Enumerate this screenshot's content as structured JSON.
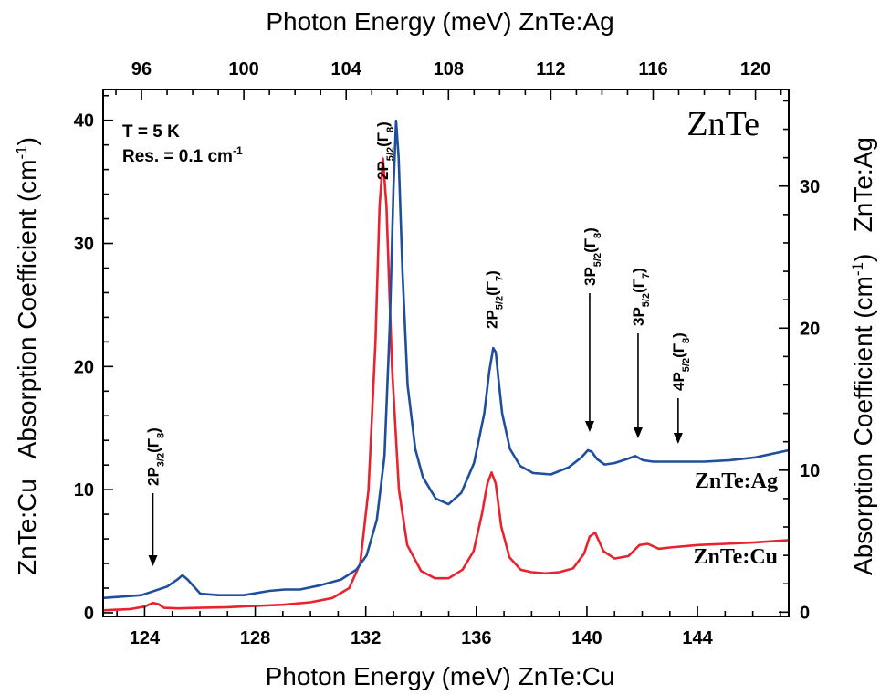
{
  "chart_data": {
    "type": "line",
    "title": "ZnTe",
    "conditions": [
      "T = 5 K",
      "Res. = 0.1 cm"
    ],
    "conditions_superscript": "-1",
    "x_bottom": {
      "label": "Photon Energy (meV)  ZnTe:Cu",
      "range": [
        122.5,
        147.3
      ],
      "ticks": [
        124,
        128,
        132,
        136,
        140,
        144
      ]
    },
    "x_top": {
      "label": "Photon Energy (meV)  ZnTe:Ag",
      "range": [
        94.5,
        121.3
      ],
      "ticks": [
        96,
        100,
        104,
        108,
        112,
        116,
        120
      ]
    },
    "y_left": {
      "label_prefix": "ZnTe:Cu",
      "label": "Absorption Coefficient (cm",
      "label_sup": "-1",
      "label_close": ")",
      "range": [
        -0.3,
        42.5
      ],
      "ticks": [
        0,
        10,
        20,
        30,
        40
      ]
    },
    "y_right": {
      "label_prefix": "ZnTe:Ag",
      "label": "Absorption Coefficient (cm",
      "label_sup": "-1",
      "label_close": ")",
      "range": [
        -0.3,
        36.8
      ],
      "ticks": [
        0,
        10,
        20,
        30
      ]
    },
    "series": [
      {
        "name": "ZnTe:Ag",
        "axis": "y_right",
        "color": "#1f4e9c",
        "x_axis": "x_top",
        "peaks_x": [
          97.6,
          105.9,
          109.8,
          113.5,
          115.3
        ],
        "x": [
          94.5,
          96.0,
          97.0,
          97.4,
          97.6,
          97.8,
          98.3,
          99.0,
          100.0,
          101.0,
          101.6,
          102.2,
          103.0,
          103.8,
          104.4,
          104.8,
          105.2,
          105.5,
          105.7,
          105.85,
          105.95,
          106.05,
          106.2,
          106.4,
          106.7,
          107.0,
          107.5,
          108.0,
          108.5,
          109.0,
          109.4,
          109.6,
          109.75,
          109.85,
          109.95,
          110.1,
          110.4,
          110.8,
          111.3,
          112.0,
          112.7,
          113.2,
          113.45,
          113.6,
          113.8,
          114.1,
          114.5,
          115.0,
          115.3,
          115.6,
          116.0,
          117.0,
          118.0,
          119.0,
          120.0,
          121.3
        ],
        "values": [
          1.0,
          1.2,
          1.8,
          2.3,
          2.6,
          2.3,
          1.3,
          1.2,
          1.2,
          1.5,
          1.6,
          1.6,
          1.9,
          2.3,
          3.0,
          4.0,
          6.5,
          11.0,
          20.0,
          30.0,
          34.6,
          32.0,
          24.0,
          16.0,
          11.5,
          9.5,
          8.0,
          7.6,
          8.4,
          10.5,
          14.0,
          17.0,
          18.6,
          18.3,
          16.5,
          14.0,
          11.5,
          10.3,
          9.8,
          9.7,
          10.2,
          10.9,
          11.4,
          11.3,
          10.8,
          10.4,
          10.5,
          10.8,
          11.0,
          10.7,
          10.6,
          10.6,
          10.6,
          10.7,
          10.9,
          11.4
        ]
      },
      {
        "name": "ZnTe:Cu",
        "axis": "y_left",
        "color": "#e8232f",
        "x_axis": "x_bottom",
        "x": [
          122.5,
          123.5,
          124.0,
          124.3,
          124.5,
          124.7,
          125.2,
          126.0,
          127.0,
          128.0,
          129.0,
          130.0,
          130.8,
          131.4,
          131.8,
          132.1,
          132.35,
          132.5,
          132.62,
          132.75,
          132.95,
          133.2,
          133.5,
          134.0,
          134.5,
          135.0,
          135.5,
          135.9,
          136.2,
          136.4,
          136.55,
          136.7,
          136.9,
          137.2,
          137.6,
          138.0,
          138.5,
          139.0,
          139.5,
          139.9,
          140.1,
          140.3,
          140.6,
          141.0,
          141.5,
          141.9,
          142.2,
          142.6,
          143.0,
          144.0,
          145.0,
          146.0,
          147.3
        ],
        "values": [
          0.2,
          0.3,
          0.5,
          0.8,
          0.7,
          0.4,
          0.35,
          0.4,
          0.45,
          0.55,
          0.65,
          0.85,
          1.2,
          2.0,
          4.0,
          10.0,
          22.0,
          33.0,
          36.9,
          33.0,
          20.0,
          10.0,
          5.5,
          3.4,
          2.8,
          2.8,
          3.5,
          5.0,
          8.0,
          10.5,
          11.4,
          10.5,
          7.0,
          4.5,
          3.5,
          3.3,
          3.2,
          3.3,
          3.6,
          4.8,
          6.2,
          6.5,
          5.0,
          4.4,
          4.6,
          5.5,
          5.6,
          5.2,
          5.3,
          5.5,
          5.6,
          5.7,
          5.9
        ]
      }
    ],
    "series_labels": [
      "ZnTe:Ag",
      "ZnTe:Cu"
    ],
    "annotations": [
      {
        "main": "2P",
        "sub": "3/2",
        "gamma": "(Γ",
        "gamma_sub": "8",
        "close": ")",
        "x": 124.3,
        "has_arrow": true
      },
      {
        "main": "2P",
        "sub": "5/2",
        "gamma": "(Γ",
        "gamma_sub": "8",
        "close": ")",
        "x": 132.6,
        "has_arrow": false
      },
      {
        "main": "2P",
        "sub": "5/2",
        "gamma": "(Γ",
        "gamma_sub": "7",
        "close": ")",
        "x": 136.55,
        "has_arrow": false
      },
      {
        "main": "3P",
        "sub": "5/2",
        "gamma": "(Γ",
        "gamma_sub": "8",
        "close": ")",
        "x": 140.1,
        "has_arrow": true
      },
      {
        "main": "3P",
        "sub": "5/2",
        "gamma": "(Γ",
        "gamma_sub": "7",
        "close": ")",
        "x": 141.85,
        "has_arrow": true
      },
      {
        "main": "4P",
        "sub": "5/2",
        "gamma": "(Γ",
        "gamma_sub": "8",
        "close": ")",
        "x": 143.3,
        "has_arrow": true
      }
    ],
    "grid": false
  }
}
